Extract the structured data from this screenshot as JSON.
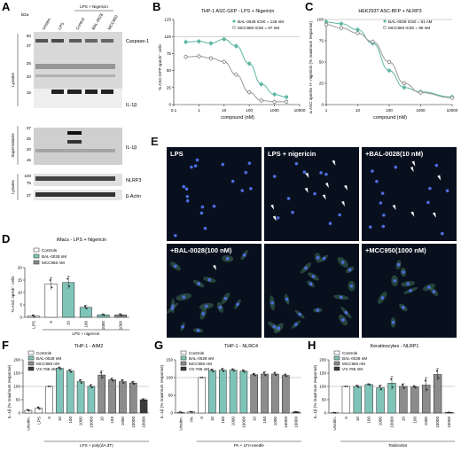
{
  "panels": {
    "A": {
      "letter": "A",
      "kda": "kDa",
      "col_headers": [
        "Unstim.",
        "LPS",
        "Control",
        "BAL-0028",
        "MCC950"
      ],
      "group_header": "LPS + Nigericin",
      "markers": [
        "50",
        "37",
        "25",
        "20",
        "15",
        "37",
        "25",
        "20",
        "15",
        "100",
        "75",
        "37"
      ],
      "band_labels": [
        "Caspase-1",
        "IL-1β",
        "IL-1β",
        "NLRP3",
        "β-Actin"
      ],
      "side_labels": [
        "Lysates",
        "Supernatants",
        "Lysates"
      ]
    },
    "B": {
      "letter": "B",
      "title": "THP-1 ASC-GFP - LPS + Nigericin",
      "xlabel": "compound (nM)",
      "ylabel": "% ASC-GFP speck⁺ cells",
      "legend": [
        "BAL-0028 IC50 = 128 nM",
        "MCC950 IC50 = 67 nM"
      ]
    },
    "C": {
      "letter": "C",
      "title": "HEK293T ASC-BFP + NLRP3",
      "xlabel": "compound (nM)",
      "ylabel": "Δ ASC specks +/- nigericin (% maximum response)",
      "legend": [
        "BAL-0028 IC50 = 61 nM",
        "MCC950 IC50 = 95 nM"
      ]
    },
    "D": {
      "letter": "D",
      "title": "iMacs - LPS + Nigericin",
      "ylabel": "% ASC speck⁺ cells",
      "legend": [
        "Controls",
        "BAL-0028 nM",
        "MCC950 nM"
      ],
      "xticks": [
        "LPS",
        "0",
        "10",
        "100",
        "1000",
        "1000"
      ],
      "xgroup": "LPS + nigericin"
    },
    "E": {
      "letter": "E",
      "tiles": [
        "LPS",
        "LPS + nigericin",
        "+BAL-0028(10 nM)",
        "+BAL-0028(100 nM)",
        "",
        "+MCC950(1000 nM)"
      ]
    },
    "F": {
      "letter": "F",
      "title": "THP-1 - AIM2",
      "ylabel": "IL-1β (% maximum response)",
      "legend": [
        "Controls",
        "BAL-0028 nM",
        "MCC950 nM",
        "VX-765 nM"
      ],
      "xticks": [
        "Unstim.",
        "LPS",
        "0",
        "10",
        "100",
        "1000",
        "10000",
        "10",
        "100",
        "1000",
        "10000",
        "10000"
      ],
      "xgroup": "LPS + poly(dA:dT)"
    },
    "G": {
      "letter": "G",
      "title": "THP-1 - NLRC4",
      "ylabel": "IL-1β (% maximum response)",
      "legend": [
        "Controls",
        "BAL-0028 nM",
        "MCC950 nM",
        "VX-765 nM"
      ],
      "xticks": [
        "Unstim.",
        "PA",
        "0",
        "10",
        "100",
        "1000",
        "10000",
        "10",
        "100",
        "1000",
        "10000",
        "10000"
      ],
      "xgroup": "PA + LFn-needle"
    },
    "H": {
      "letter": "H",
      "title": "Keratinocytes - NLRP1",
      "ylabel": "IL-1β (% maximum response)",
      "legend": [
        "Controls",
        "BAL-0028 nM",
        "MCC950 nM",
        "VX-765 nM"
      ],
      "xticks": [
        "Unstim.",
        "0",
        "10",
        "100",
        "1000",
        "10000",
        "10",
        "100",
        "1000",
        "10000",
        "10000"
      ],
      "xgroup": "Talabostat"
    }
  },
  "colors": {
    "teal": "#7fc4b8",
    "grey": "#8c8c8c",
    "dark": "#3a3a3a",
    "white": "#ffffff",
    "curveTeal": "#5fb8a4",
    "curveGrey": "#999999"
  },
  "chart_data": [
    {
      "panel": "B",
      "type": "line",
      "title": "THP-1 ASC-GFP - LPS + Nigericin",
      "xlabel": "compound (nM)",
      "ylabel": "% ASC-GFP speck⁺ cells",
      "xscale": "log",
      "xlim": [
        0.1,
        10000
      ],
      "ylim": [
        0,
        125
      ],
      "xticks": [
        "0.1",
        "1",
        "10",
        "100",
        "1000",
        "10000"
      ],
      "yticks": [
        "0",
        "25",
        "50",
        "75",
        "100",
        "125"
      ],
      "series": [
        {
          "name": "BAL-0028 IC50 = 128 nM",
          "x": [
            0.3,
            1,
            3,
            10,
            30,
            100,
            300,
            1000,
            3000
          ],
          "y": [
            92,
            93,
            90,
            96,
            86,
            60,
            30,
            15,
            11
          ]
        },
        {
          "name": "MCC950 IC50 = 67 nM",
          "x": [
            0.3,
            1,
            3,
            10,
            30,
            100,
            300,
            1000,
            3000
          ],
          "y": [
            70,
            71,
            68,
            63,
            44,
            18,
            6,
            4,
            4
          ]
        }
      ]
    },
    {
      "panel": "C",
      "type": "line",
      "title": "HEK293T ASC-BFP + NLRP3",
      "xlabel": "compound (nM)",
      "ylabel": "Δ ASC specks +/- nigericin (% maximum response)",
      "xscale": "log",
      "xlim": [
        1,
        10000
      ],
      "ylim": [
        0,
        100
      ],
      "xticks": [
        "1",
        "10",
        "100",
        "1000",
        "10000"
      ],
      "yticks": [
        "0",
        "25",
        "50",
        "75",
        "100"
      ],
      "series": [
        {
          "name": "BAL-0028 IC50 = 61 nM",
          "x": [
            1,
            3,
            10,
            30,
            100,
            300,
            1000,
            10000
          ],
          "y": [
            97,
            95,
            88,
            72,
            40,
            20,
            15,
            9
          ]
        },
        {
          "name": "MCC950 IC50 = 95 nM",
          "x": [
            1,
            3,
            10,
            30,
            100,
            300,
            1000,
            10000
          ],
          "y": [
            94,
            90,
            84,
            74,
            50,
            25,
            14,
            8
          ]
        }
      ]
    },
    {
      "panel": "D",
      "type": "bar",
      "title": "iMacs - LPS + Nigericin",
      "ylabel": "% ASC speck⁺ cells",
      "ylim": [
        0,
        20
      ],
      "yticks": [
        "0",
        "5",
        "10",
        "15",
        "20"
      ],
      "categories": [
        "LPS",
        "0",
        "10",
        "100",
        "1000",
        "1000"
      ],
      "values": [
        0.5,
        13.5,
        14,
        4,
        1,
        1
      ],
      "errors": [
        0.5,
        2.5,
        2.5,
        0.8,
        0.3,
        0.4
      ],
      "groups": [
        "Controls",
        "Controls",
        "BAL-0028 nM",
        "BAL-0028 nM",
        "BAL-0028 nM",
        "MCC950 nM"
      ]
    },
    {
      "panel": "F",
      "type": "bar",
      "title": "THP-1 - AIM2",
      "ylabel": "IL-1β (% maximum response)",
      "ylim": [
        0,
        200
      ],
      "yticks": [
        "0",
        "50",
        "100",
        "150",
        "200"
      ],
      "categories": [
        "Unstim.",
        "LPS",
        "0",
        "10",
        "100",
        "1000",
        "10000",
        "10",
        "100",
        "1000",
        "10000",
        "10000"
      ],
      "values": [
        10,
        18,
        100,
        168,
        158,
        118,
        100,
        143,
        125,
        118,
        113,
        50
      ],
      "errors": [
        3,
        5,
        0,
        5,
        6,
        8,
        7,
        15,
        6,
        8,
        6,
        4
      ],
      "groups": [
        "Controls",
        "Controls",
        "Controls",
        "BAL-0028 nM",
        "BAL-0028 nM",
        "BAL-0028 nM",
        "BAL-0028 nM",
        "MCC950 nM",
        "MCC950 nM",
        "MCC950 nM",
        "MCC950 nM",
        "VX-765 nM"
      ]
    },
    {
      "panel": "G",
      "type": "bar",
      "title": "THP-1 - NLRC4",
      "ylabel": "IL-1β (% maximum response)",
      "ylim": [
        0,
        150
      ],
      "yticks": [
        "0",
        "50",
        "100",
        "150"
      ],
      "categories": [
        "Unstim.",
        "PA",
        "0",
        "10",
        "100",
        "1000",
        "10000",
        "10",
        "100",
        "1000",
        "10000",
        "10000"
      ],
      "values": [
        2,
        3,
        100,
        120,
        121,
        121,
        118,
        108,
        110,
        110,
        106,
        3
      ],
      "errors": [
        1,
        1,
        0,
        4,
        5,
        4,
        4,
        4,
        6,
        5,
        4,
        1
      ],
      "groups": [
        "Controls",
        "Controls",
        "Controls",
        "BAL-0028 nM",
        "BAL-0028 nM",
        "BAL-0028 nM",
        "BAL-0028 nM",
        "MCC950 nM",
        "MCC950 nM",
        "MCC950 nM",
        "MCC950 nM",
        "VX-765 nM"
      ]
    },
    {
      "panel": "H",
      "type": "bar",
      "title": "Keratinocytes - NLRP1",
      "ylabel": "IL-1β (% maximum response)",
      "ylim": [
        0,
        200
      ],
      "yticks": [
        "0",
        "50",
        "100",
        "150",
        "200"
      ],
      "categories": [
        "Unstim.",
        "0",
        "10",
        "100",
        "1000",
        "10000",
        "10",
        "100",
        "1000",
        "10000",
        "10000"
      ],
      "values": [
        1,
        100,
        100,
        107,
        95,
        112,
        100,
        98,
        105,
        145,
        2
      ],
      "errors": [
        1,
        0,
        5,
        3,
        10,
        25,
        10,
        5,
        28,
        22,
        1
      ],
      "groups": [
        "Controls",
        "Controls",
        "BAL-0028 nM",
        "BAL-0028 nM",
        "BAL-0028 nM",
        "BAL-0028 nM",
        "MCC950 nM",
        "MCC950 nM",
        "MCC950 nM",
        "MCC950 nM",
        "VX-765 nM"
      ]
    }
  ]
}
